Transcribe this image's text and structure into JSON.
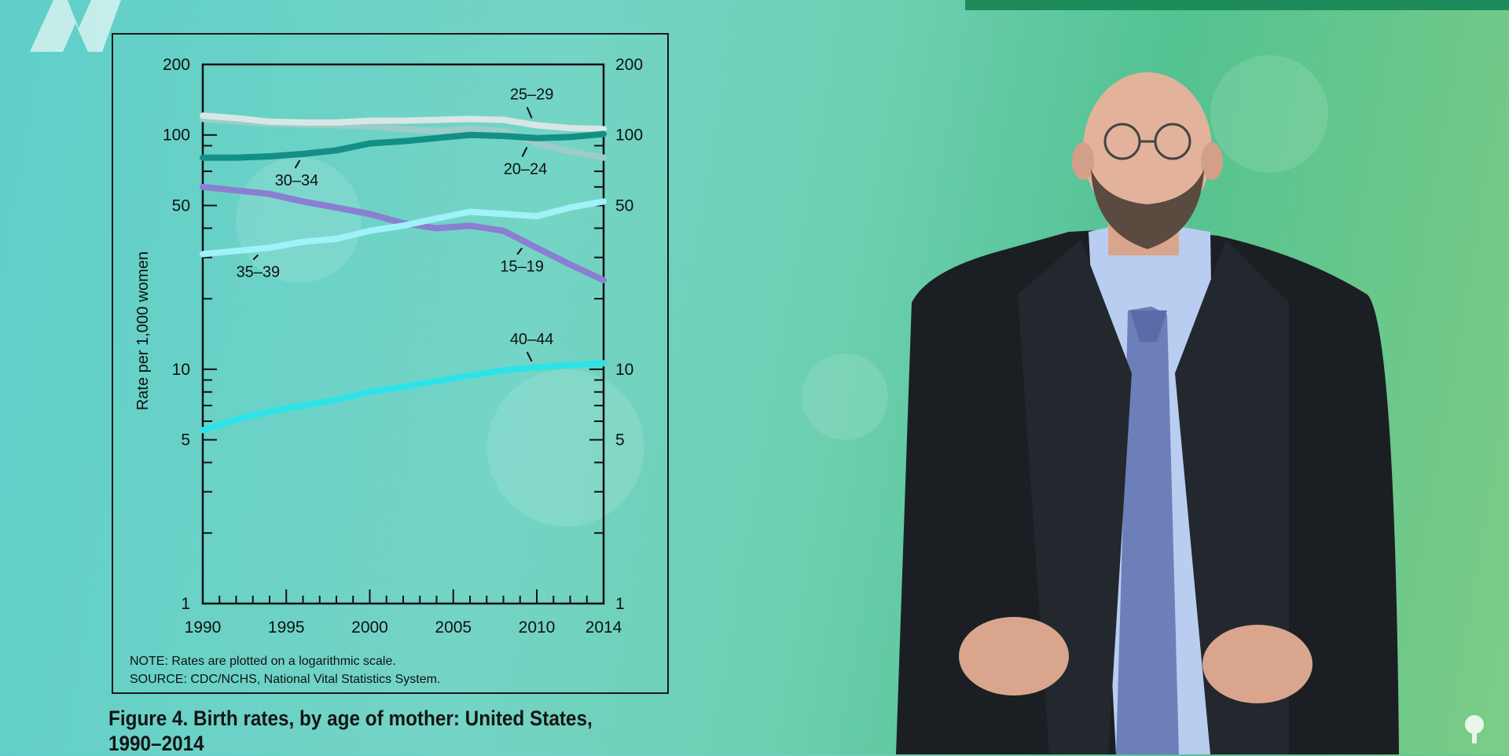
{
  "chart_data": {
    "type": "line",
    "scale": "log",
    "ylabel": "Rate per 1,000 women",
    "xlim": [
      1990,
      2014
    ],
    "ylim": [
      1,
      200
    ],
    "x_ticks": [
      "1990",
      "1995",
      "2000",
      "2005",
      "2010",
      "2014"
    ],
    "y_ticks": [
      "1",
      "5",
      "10",
      "50",
      "100",
      "200"
    ],
    "x": [
      1990,
      1992,
      1994,
      1996,
      1998,
      2000,
      2002,
      2004,
      2006,
      2008,
      2010,
      2012,
      2014
    ],
    "series": [
      {
        "name": "15–19",
        "color": "#8a7fd0",
        "values": [
          60,
          58,
          56,
          52,
          49,
          46,
          42,
          40,
          41,
          39,
          33,
          28,
          24
        ]
      },
      {
        "name": "20–24",
        "color": "#9ccdc8",
        "values": [
          117,
          114,
          112,
          111,
          110,
          109,
          106,
          104,
          106,
          104,
          92,
          85,
          80
        ]
      },
      {
        "name": "25–29",
        "color": "#d8e6e6",
        "values": [
          121,
          118,
          114,
          113,
          113,
          115,
          115,
          116,
          117,
          116,
          110,
          107,
          106
        ]
      },
      {
        "name": "30–34",
        "color": "#138f86",
        "values": [
          80,
          80,
          81,
          83,
          86,
          92,
          94,
          97,
          100,
          99,
          97,
          98,
          101
        ]
      },
      {
        "name": "35–39",
        "color": "#9ff2f7",
        "values": [
          31,
          32,
          33,
          35,
          36,
          39,
          41,
          44,
          47,
          46,
          45,
          49,
          52
        ]
      },
      {
        "name": "40–44",
        "color": "#2de3e8",
        "values": [
          5.5,
          6.1,
          6.6,
          7.0,
          7.4,
          8.0,
          8.4,
          8.9,
          9.4,
          9.9,
          10.2,
          10.4,
          10.6
        ]
      }
    ],
    "note": "NOTE: Rates are plotted on a logarithmic scale.",
    "source": "SOURCE: CDC/NCHS, National Vital Statistics System.",
    "caption": "Figure 4. Birth rates, by age of mother: United States, 1990–2014"
  },
  "colors": {
    "background_left": "#5fcfc8",
    "background_right": "#7ccc86",
    "banner": "#1e8c5a",
    "suit": "#1b1f24",
    "shirt": "#b9cdf0",
    "tie": "#6d7fb8"
  }
}
